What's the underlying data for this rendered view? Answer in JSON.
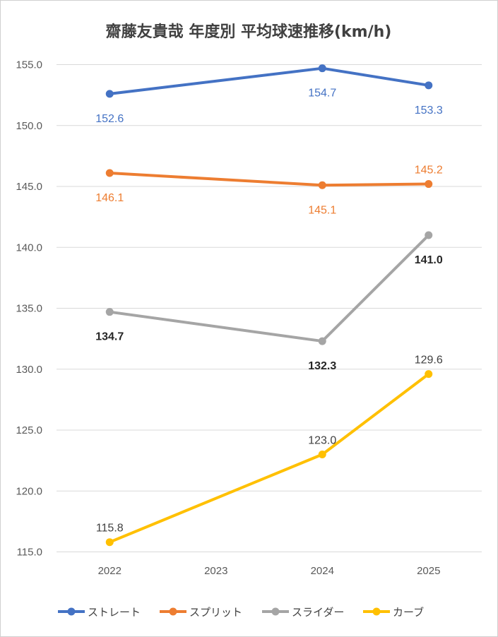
{
  "chart_data": {
    "type": "line",
    "title": "齋藤友貴哉 年度別 平均球速推移(km/h)",
    "xlabel": "",
    "ylabel": "",
    "categories": [
      "2022",
      "2023",
      "2024",
      "2025"
    ],
    "ylim": [
      115.0,
      155.0
    ],
    "ystep": 5,
    "y_tick_labels": [
      "115.0",
      "120.0",
      "125.0",
      "130.0",
      "135.0",
      "140.0",
      "145.0",
      "150.0",
      "155.0"
    ],
    "grid": true,
    "legend_position": "bottom",
    "series": [
      {
        "name": "ストレート",
        "color": "#4472C4",
        "values": [
          152.6,
          null,
          154.7,
          153.3
        ],
        "labels": [
          "152.6",
          null,
          "154.7",
          "153.3"
        ],
        "label_color": "#4472C4",
        "label_bold": false,
        "label_pos": [
          "below",
          null,
          "below",
          "below"
        ]
      },
      {
        "name": "スプリット",
        "color": "#ED7D31",
        "values": [
          146.1,
          null,
          145.1,
          145.2
        ],
        "labels": [
          "146.1",
          null,
          "145.1",
          "145.2"
        ],
        "label_color": "#ED7D31",
        "label_bold": false,
        "label_pos": [
          "below",
          null,
          "below",
          "above"
        ]
      },
      {
        "name": "スライダー",
        "color": "#A5A5A5",
        "values": [
          134.7,
          null,
          132.3,
          141.0
        ],
        "labels": [
          "134.7",
          null,
          "132.3",
          "141.0"
        ],
        "label_color": "#262626",
        "label_bold": true,
        "label_pos": [
          "below",
          null,
          "below",
          "below"
        ]
      },
      {
        "name": "カーブ",
        "color": "#FFC000",
        "values": [
          115.8,
          null,
          123.0,
          129.6
        ],
        "labels": [
          "115.8",
          null,
          "123.0",
          "129.6"
        ],
        "label_color": "#404040",
        "label_bold": false,
        "label_pos": [
          "above",
          null,
          "above",
          "above"
        ]
      }
    ]
  }
}
